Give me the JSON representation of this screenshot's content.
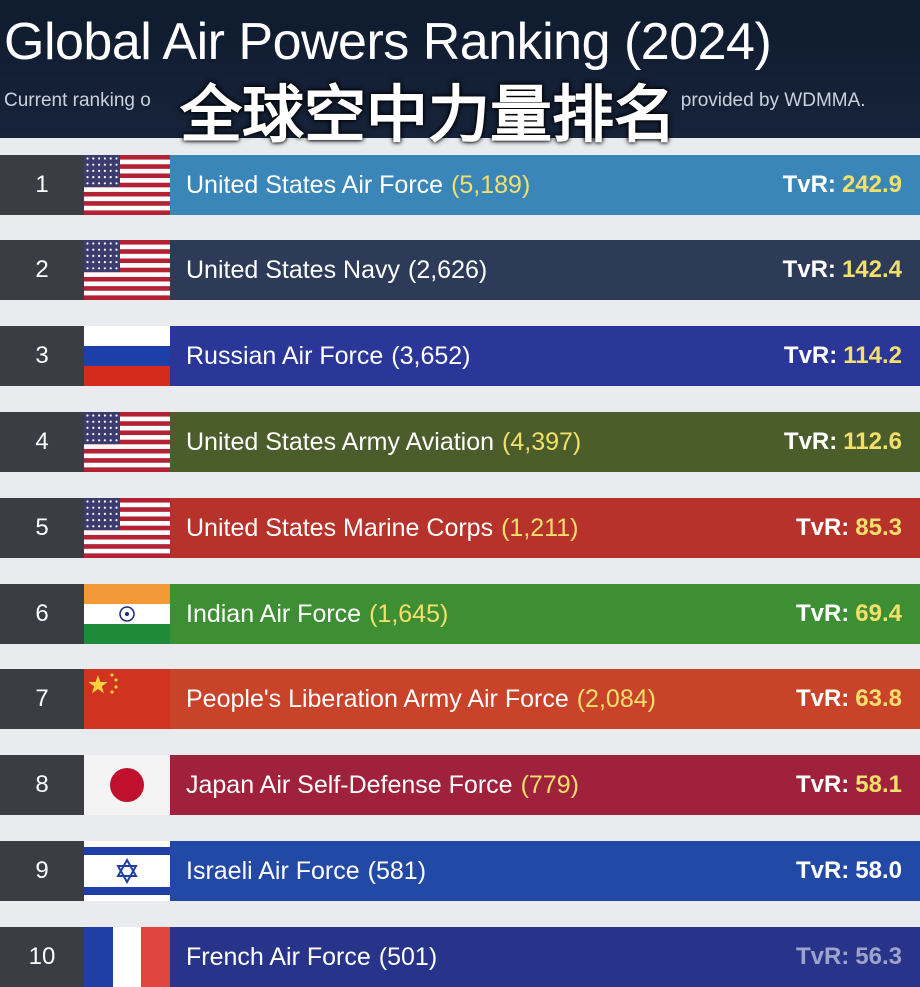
{
  "header": {
    "title": "Global Air Powers Ranking (2024)",
    "subtitle_left": "Current ranking o",
    "subtitle_right": "provided by WDMMA.",
    "overlay_text": "全球空中力量排名"
  },
  "colors": {
    "header_bg": "#0f1b2e",
    "rank_bg": "#3a3d44",
    "tvr_value_yellow": "#f3e06b",
    "tvr_value_white": "#ffffff"
  },
  "rows": [
    {
      "rank": "1",
      "flag": "usa-flag-icon",
      "name": "United States Air Force",
      "count": "(5,189)",
      "tvr_label": "TvR:",
      "tvr_value": "242.9",
      "bar_color": "#3a86b8",
      "count_color": "#f3e06b",
      "tvr_color": "#f3e06b"
    },
    {
      "rank": "2",
      "flag": "usa-flag-icon",
      "name": "United States Navy",
      "count": "(2,626)",
      "tvr_label": "TvR:",
      "tvr_value": "142.4",
      "bar_color": "#2d3a58",
      "count_color": "#ffffff",
      "tvr_color": "#f3e06b"
    },
    {
      "rank": "3",
      "flag": "russia-flag-icon",
      "name": "Russian Air Force",
      "count": "(3,652)",
      "tvr_label": "TvR:",
      "tvr_value": "114.2",
      "bar_color": "#2a3799",
      "count_color": "#ffffff",
      "tvr_color": "#f3e06b"
    },
    {
      "rank": "4",
      "flag": "usa-flag-icon",
      "name": "United States Army Aviation",
      "count": "(4,397)",
      "tvr_label": "TvR:",
      "tvr_value": "112.6",
      "bar_color": "#4c5d2c",
      "count_color": "#f3e06b",
      "tvr_color": "#f3e06b"
    },
    {
      "rank": "5",
      "flag": "usa-flag-icon",
      "name": "United States Marine Corps",
      "count": "(1,211)",
      "tvr_label": "TvR:",
      "tvr_value": "85.3",
      "bar_color": "#b7322b",
      "count_color": "#f3e06b",
      "tvr_color": "#f3e06b"
    },
    {
      "rank": "6",
      "flag": "india-flag-icon",
      "name": "Indian Air Force",
      "count": "(1,645)",
      "tvr_label": "TvR:",
      "tvr_value": "69.4",
      "bar_color": "#3e8f34",
      "count_color": "#f3e06b",
      "tvr_color": "#f3e06b"
    },
    {
      "rank": "7",
      "flag": "china-flag-icon",
      "name": "People's Liberation Army Air Force",
      "count": "(2,084)",
      "tvr_label": "TvR:",
      "tvr_value": "63.8",
      "bar_color": "#c9432a",
      "count_color": "#f3e06b",
      "tvr_color": "#f3e06b"
    },
    {
      "rank": "8",
      "flag": "japan-flag-icon",
      "name": "Japan Air Self-Defense Force",
      "count": "(779)",
      "tvr_label": "TvR:",
      "tvr_value": "58.1",
      "bar_color": "#a0213b",
      "count_color": "#f3e06b",
      "tvr_color": "#f3e06b"
    },
    {
      "rank": "9",
      "flag": "israel-flag-icon",
      "name": "Israeli Air Force",
      "count": "(581)",
      "tvr_label": "TvR:",
      "tvr_value": "58.0",
      "bar_color": "#2349a6",
      "count_color": "#ffffff",
      "tvr_color": "#ffffff"
    },
    {
      "rank": "10",
      "flag": "france-flag-icon",
      "name": "French Air Force",
      "count": "(501)",
      "tvr_label": "TvR:",
      "tvr_value": "56.3",
      "bar_color": "#27348a",
      "count_color": "#ffffff",
      "tvr_color": "#ffffff"
    }
  ]
}
